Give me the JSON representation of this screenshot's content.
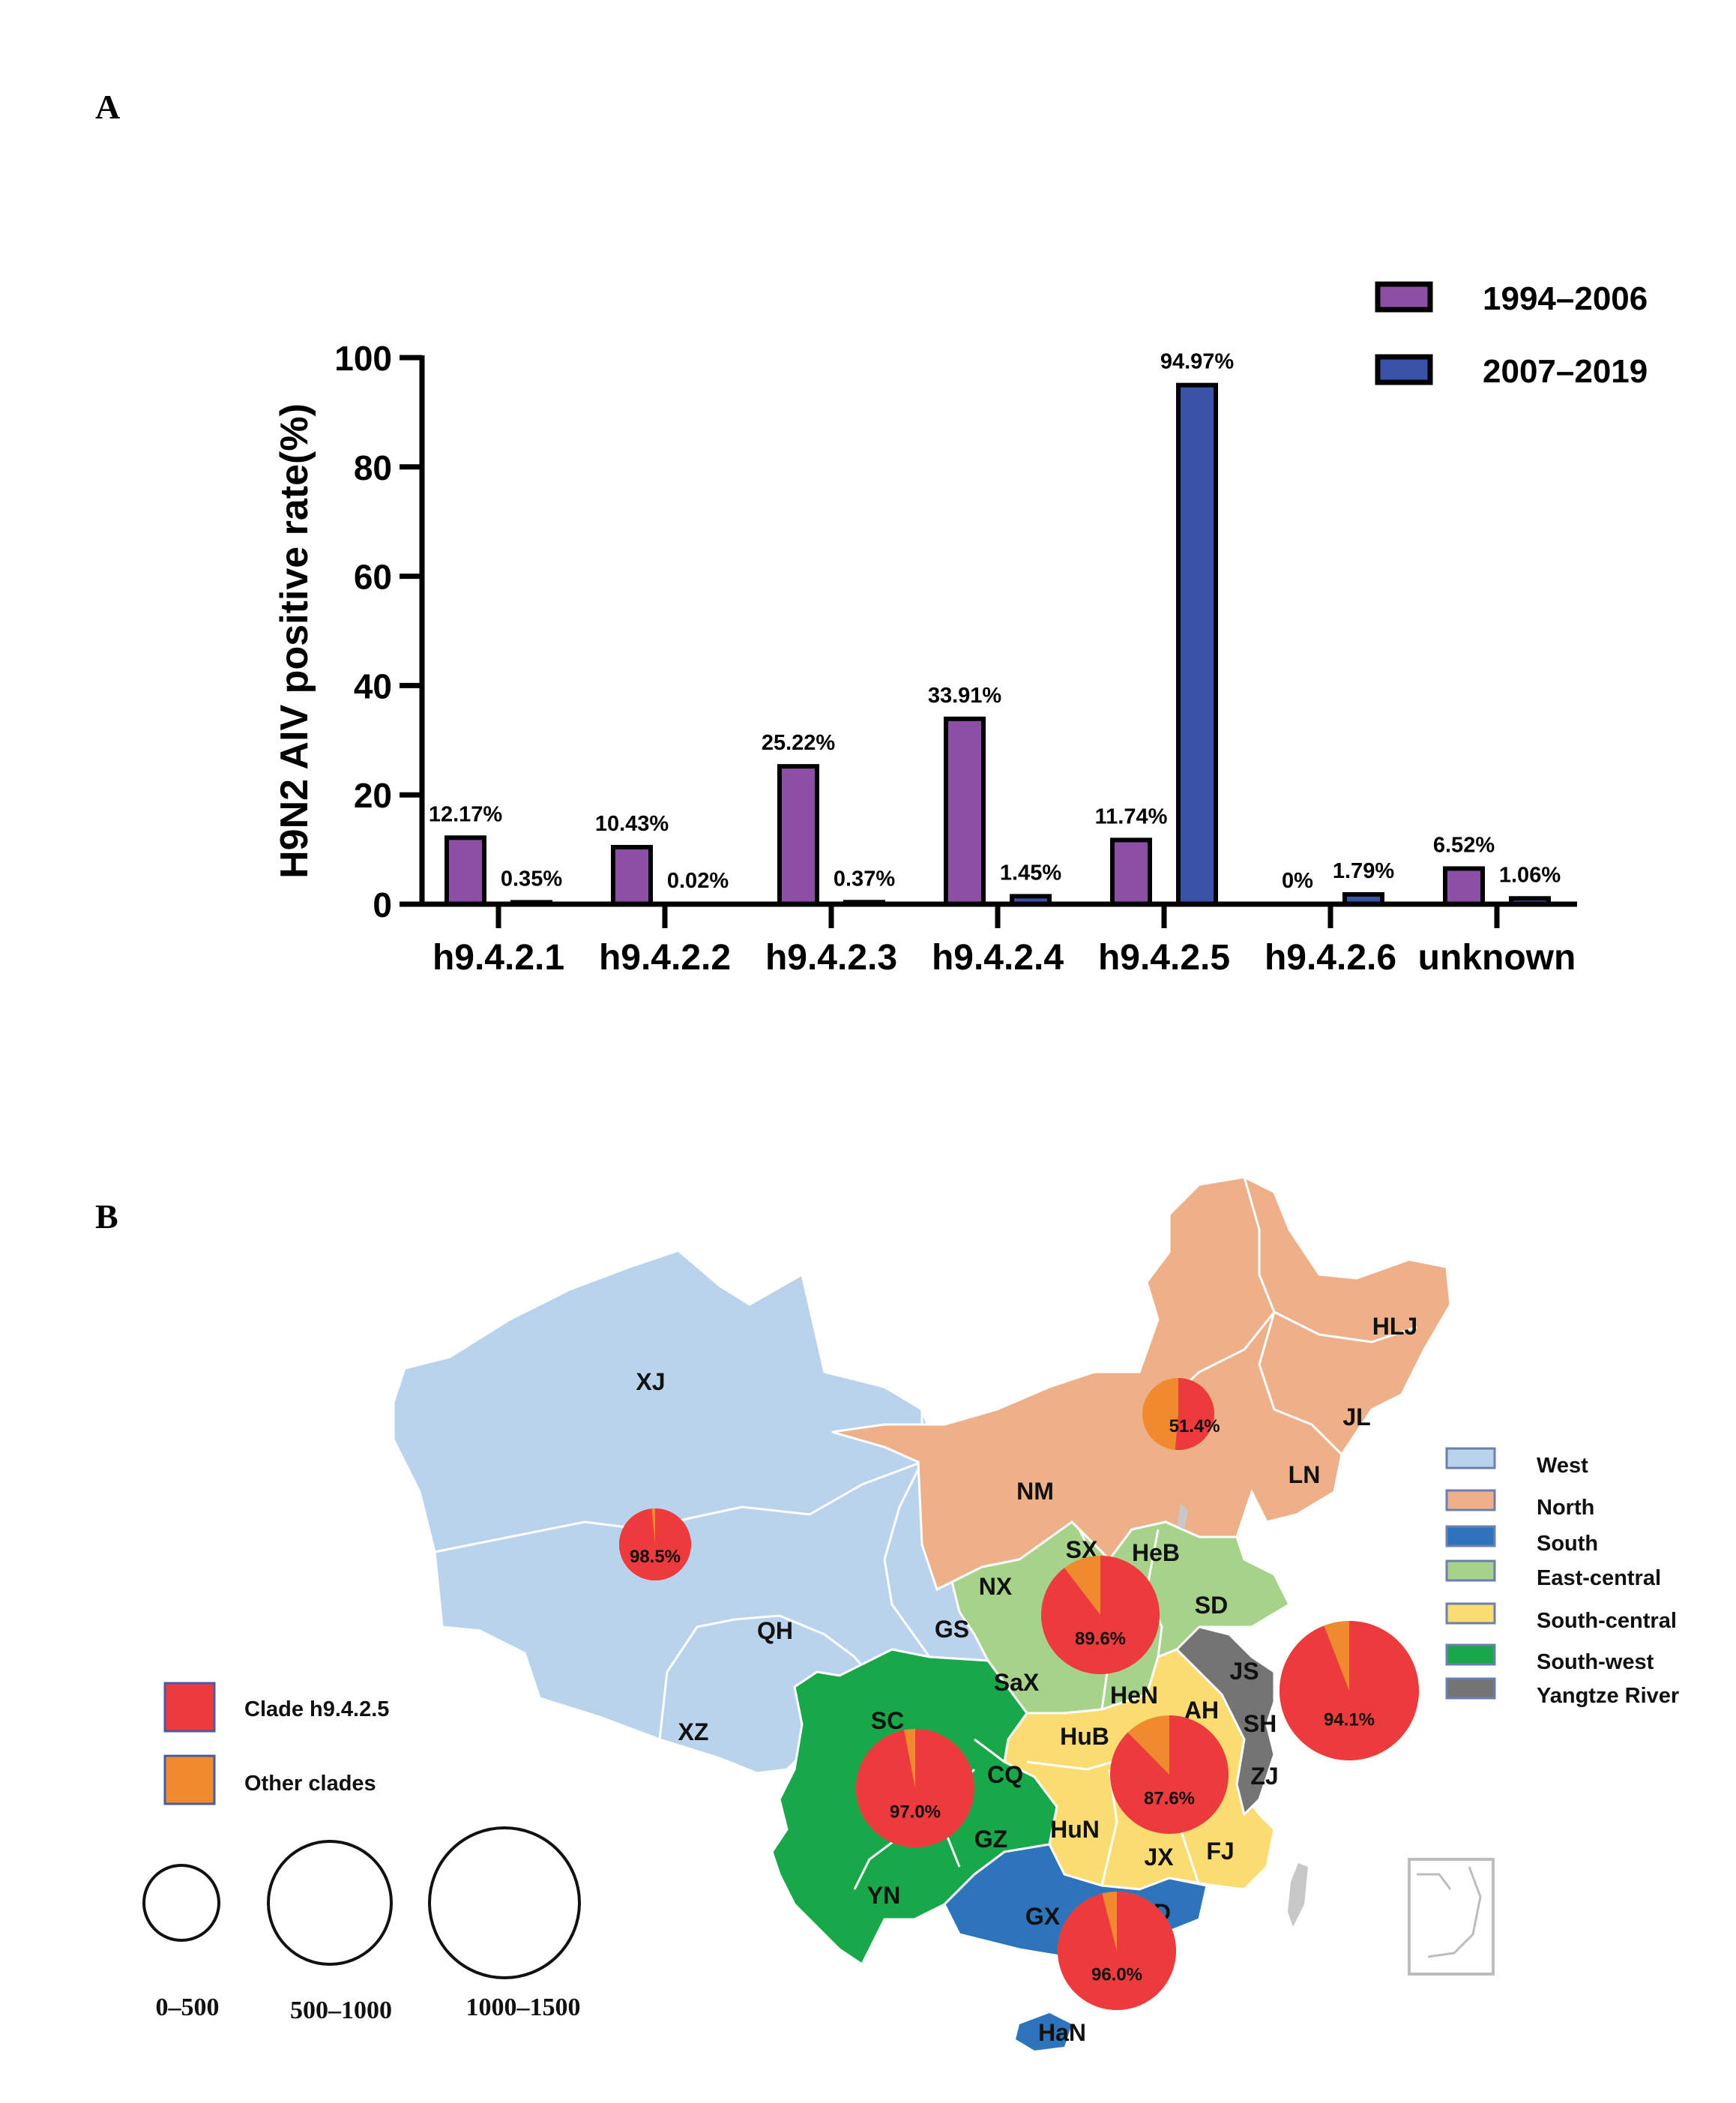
{
  "panels": {
    "a": "A",
    "b": "B"
  },
  "chart_data": {
    "type": "bar",
    "ylabel": "H9N2 AIV positive rate(%)",
    "xlabel": "",
    "ylim": [
      0,
      100
    ],
    "yticks": [
      0,
      20,
      40,
      60,
      80,
      100
    ],
    "categories": [
      "h9.4.2.1",
      "h9.4.2.2",
      "h9.4.2.3",
      "h9.4.2.4",
      "h9.4.2.5",
      "h9.4.2.6",
      "unknown"
    ],
    "series": [
      {
        "name": "1994–2006",
        "color": "#8d4ea6",
        "values": [
          12.17,
          10.43,
          25.22,
          33.91,
          11.74,
          0,
          6.52
        ],
        "labels": [
          "12.17%",
          "10.43%",
          "25.22%",
          "33.91%",
          "11.74%",
          "0%",
          "6.52%"
        ]
      },
      {
        "name": "2007–2019",
        "color": "#3a52a8",
        "values": [
          0.35,
          0.02,
          0.37,
          1.45,
          94.97,
          1.79,
          1.06
        ],
        "labels": [
          "0.35%",
          "0.02%",
          "0.37%",
          "1.45%",
          "94.97%",
          "1.79%",
          "1.06%"
        ]
      }
    ],
    "legend": "top-right"
  },
  "map": {
    "regions": [
      {
        "name": "West",
        "color": "#bad3ec"
      },
      {
        "name": "North",
        "color": "#eeb088"
      },
      {
        "name": "South",
        "color": "#2d74bd"
      },
      {
        "name": "East-central",
        "color": "#a6d28a"
      },
      {
        "name": "South-central",
        "color": "#fbdc72"
      },
      {
        "name": "South-west",
        "color": "#18a84a"
      },
      {
        "name": "Yangtze River",
        "color": "#747474"
      }
    ],
    "provinces": [
      "XJ",
      "XZ",
      "QH",
      "GS",
      "NX",
      "NM",
      "HLJ",
      "JL",
      "LN",
      "SX",
      "HeB",
      "SD",
      "SaX",
      "HeN",
      "AH",
      "JS",
      "SH",
      "ZJ",
      "HuB",
      "HuN",
      "JX",
      "FJ",
      "SC",
      "CQ",
      "GZ",
      "YN",
      "GX",
      "GD",
      "HaN"
    ],
    "clade_legend": [
      {
        "label": "Clade h9.4.2.5",
        "color": "#ec3a3d"
      },
      {
        "label": "Other clades",
        "color": "#f08a2e"
      }
    ],
    "pies": [
      {
        "region": "North",
        "clade_percent": 51.4,
        "label": "51.4%",
        "size_class": "0–500"
      },
      {
        "region": "West",
        "clade_percent": 98.5,
        "label": "98.5%",
        "size_class": "0–500"
      },
      {
        "region": "East-central",
        "clade_percent": 89.6,
        "label": "89.6%",
        "size_class": "500–1000"
      },
      {
        "region": "Yangtze River",
        "clade_percent": 94.1,
        "label": "94.1%",
        "size_class": "1000–1500"
      },
      {
        "region": "South-central",
        "clade_percent": 87.6,
        "label": "87.6%",
        "size_class": "500–1000"
      },
      {
        "region": "South-west",
        "clade_percent": 97.0,
        "label": "97.0%",
        "size_class": "500–1000"
      },
      {
        "region": "South",
        "clade_percent": 96.0,
        "label": "96.0%",
        "size_class": "500–1000"
      }
    ],
    "size_legend": [
      "0–500",
      "500–1000",
      "1000–1500"
    ]
  }
}
